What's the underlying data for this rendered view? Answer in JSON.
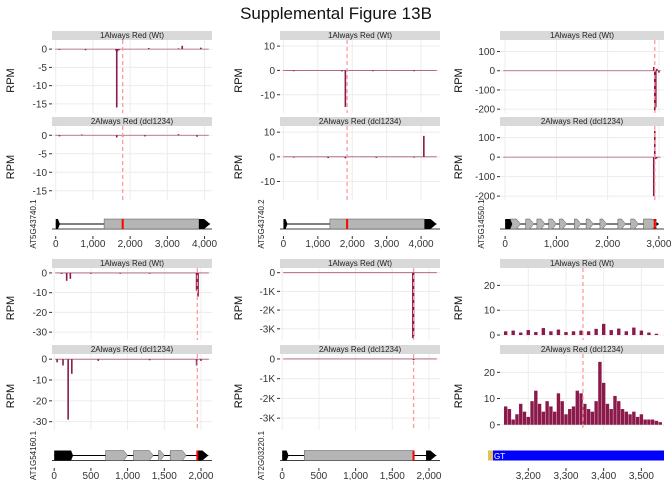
{
  "figure": {
    "title": "Supplemental Figure 13B",
    "y_label": "RPM",
    "tracks": [
      "1Always Red (Wt)",
      "2Always Red (dcl1234)"
    ]
  },
  "colors": {
    "bar": "#8b1a4a",
    "dashed_line": "#ff9a9a",
    "strip": "#d9d9d9",
    "grid": "#ececec",
    "exon": "#b5b5b5",
    "utr": "#000000",
    "marker": "#ff0000",
    "blue_feature": "#0000ff",
    "gold_feature": "#e0c060"
  },
  "chart_data": [
    {
      "type": "bar",
      "gene": "AT5G43740.1",
      "xlim": [
        -100,
        4200
      ],
      "x_ticks": [
        0,
        1000,
        2000,
        3000,
        4000
      ],
      "x_tick_labels": [
        "0",
        "1,000",
        "2,000",
        "3,000",
        "4,000"
      ],
      "ylim": [
        -17.5,
        2.5
      ],
      "y_ticks": [
        0,
        -5,
        -10,
        -15
      ],
      "y_tick_labels": [
        "0",
        "-5",
        "-10",
        "-15"
      ],
      "dashed_x": 1800,
      "marker_x": 1800,
      "series": [
        {
          "name": "1Always Red (Wt)",
          "x": [
            100,
            800,
            1620,
            1640,
            1660,
            1700,
            2500,
            3300,
            3400,
            3900
          ],
          "values": [
            -0.2,
            -0.3,
            -0.4,
            -16,
            -0.6,
            -0.3,
            0.3,
            0.2,
            0.9,
            0.4
          ]
        },
        {
          "name": "2Always Red (dcl1234)",
          "x": [
            100,
            700,
            1640,
            1800,
            2400,
            3300,
            3800
          ],
          "values": [
            -0.3,
            0.2,
            -0.6,
            -0.5,
            -0.3,
            0.3,
            -0.4
          ]
        }
      ]
    },
    {
      "type": "bar",
      "gene": "AT5G43740.2",
      "xlim": [
        -100,
        4550
      ],
      "x_ticks": [
        0,
        1000,
        2000,
        3000,
        4000
      ],
      "x_tick_labels": [
        "0",
        "1,000",
        "2,000",
        "3,000",
        "4,000"
      ],
      "ylim": [
        -17.5,
        12.5
      ],
      "y_ticks": [
        10,
        0,
        -10
      ],
      "y_tick_labels": [
        "10",
        "0",
        "-10"
      ],
      "dashed_x": 1850,
      "marker_x": 1850,
      "series": [
        {
          "name": "1Always Red (Wt)",
          "x": [
            300,
            1700,
            1800,
            2600,
            3800
          ],
          "values": [
            -0.3,
            -0.4,
            -15,
            -0.3,
            -0.2
          ]
        },
        {
          "name": "2Always Red (dcl1234)",
          "x": [
            300,
            1300,
            1800,
            2700,
            3800,
            4080
          ],
          "values": [
            -0.3,
            -0.5,
            -0.6,
            -0.4,
            -0.3,
            8.5
          ]
        }
      ]
    },
    {
      "type": "bar",
      "gene": "AT5G14550.1",
      "xlim": [
        -100,
        3100
      ],
      "x_ticks": [
        0,
        1000,
        2000,
        3000
      ],
      "x_tick_labels": [
        "0",
        "1,000",
        "2,000",
        "3,000"
      ],
      "ylim": [
        -220,
        160
      ],
      "y_ticks": [
        100,
        0,
        -100,
        -200
      ],
      "y_tick_labels": [
        "100",
        "0",
        "-100",
        "-200"
      ],
      "dashed_x": 2920,
      "marker_x": 2920,
      "series": [
        {
          "name": "1Always Red (Wt)",
          "x": [
            2900,
            2920,
            2940,
            2960,
            3000
          ],
          "values": [
            20,
            -210,
            -190,
            10,
            -10
          ]
        },
        {
          "name": "2Always Red (dcl1234)",
          "x": [
            2900,
            2920,
            2940,
            2960
          ],
          "values": [
            -200,
            135,
            -10,
            -5
          ]
        }
      ]
    },
    {
      "type": "bar",
      "gene": "AT1G54160.1",
      "xlim": [
        -30,
        2150
      ],
      "x_ticks": [
        0,
        500,
        1000,
        1500,
        2000
      ],
      "x_tick_labels": [
        "0",
        "500",
        "1,000",
        "1,500",
        "2,000"
      ],
      "ylim": [
        -34,
        2.5
      ],
      "y_ticks": [
        0,
        -10,
        -20,
        -30
      ],
      "y_tick_labels": [
        "0",
        "-10",
        "-20",
        "-30"
      ],
      "dashed_x": 1950,
      "marker_x": 1950,
      "series": [
        {
          "name": "1Always Red (Wt)",
          "x": [
            100,
            170,
            220,
            500,
            900,
            1300,
            1940,
            1960
          ],
          "values": [
            -0.5,
            -4,
            -3,
            -0.3,
            -0.4,
            -0.3,
            -9,
            -12
          ]
        },
        {
          "name": "2Always Red (dcl1234)",
          "x": [
            40,
            120,
            190,
            240,
            600,
            1300,
            1940,
            2000
          ],
          "values": [
            -1.5,
            -3,
            -29,
            -7,
            -0.8,
            -0.5,
            -3,
            -0.8
          ]
        }
      ]
    },
    {
      "type": "bar",
      "gene": "AT2G03220.1",
      "xlim": [
        -30,
        2150
      ],
      "x_ticks": [
        0,
        500,
        1000,
        1500,
        2000
      ],
      "x_tick_labels": [
        "0",
        "500",
        "1,000",
        "1,500",
        "2,000"
      ],
      "ylim": [
        -3600,
        250
      ],
      "y_ticks": [
        0,
        -1000,
        -2000,
        -3000
      ],
      "y_tick_labels": [
        "0",
        "-1K",
        "-2K",
        "-3K"
      ],
      "dashed_x": 1790,
      "marker_x": 1790,
      "series": [
        {
          "name": "1Always Red (Wt)",
          "x": [
            1780,
            1790
          ],
          "values": [
            -3500,
            -3400
          ]
        },
        {
          "name": "2Always Red (dcl1234)",
          "x": [
            1790
          ],
          "values": [
            -60
          ]
        }
      ]
    },
    {
      "type": "bar",
      "gene": "",
      "xlim": [
        3125,
        3560
      ],
      "x_ticks": [
        3200,
        3300,
        3400,
        3500
      ],
      "x_tick_labels": [
        "3,200",
        "3,300",
        "3,400",
        "3,500"
      ],
      "ylim": [
        -2,
        27
      ],
      "y_ticks": [
        0,
        10,
        20
      ],
      "y_tick_labels": [
        "0",
        "10",
        "20"
      ],
      "dashed_x": 3345,
      "feature_label": "GT",
      "series": [
        {
          "name": "1Always Red (Wt)",
          "x": [
            3140,
            3160,
            3180,
            3200,
            3220,
            3240,
            3260,
            3280,
            3300,
            3320,
            3340,
            3360,
            3380,
            3400,
            3420,
            3440,
            3460,
            3480,
            3500,
            3520,
            3540
          ],
          "values": [
            1.5,
            1.8,
            1.0,
            2.0,
            1.2,
            2.8,
            1.5,
            2.2,
            1.2,
            1.5,
            1.8,
            1.5,
            2.5,
            4.5,
            2.0,
            2.6,
            1.5,
            3.0,
            1.8,
            1.0,
            0.5
          ]
        },
        {
          "name": "2Always Red (dcl1234)",
          "x": [
            3140,
            3150,
            3160,
            3170,
            3180,
            3190,
            3200,
            3210,
            3220,
            3230,
            3240,
            3250,
            3260,
            3270,
            3280,
            3290,
            3300,
            3310,
            3320,
            3330,
            3340,
            3350,
            3360,
            3370,
            3380,
            3390,
            3400,
            3410,
            3420,
            3430,
            3440,
            3450,
            3460,
            3470,
            3480,
            3490,
            3500,
            3510,
            3520,
            3530,
            3540,
            3550
          ],
          "values": [
            7,
            6,
            2,
            4,
            8,
            5,
            3,
            9,
            13,
            8,
            5,
            9,
            7,
            5,
            12,
            9,
            4,
            6,
            7,
            13,
            12,
            8,
            6,
            5,
            9,
            24,
            16,
            8,
            6,
            11,
            9,
            6,
            5,
            4,
            5,
            3,
            4,
            2,
            2,
            2,
            1.5,
            1
          ]
        }
      ]
    }
  ]
}
